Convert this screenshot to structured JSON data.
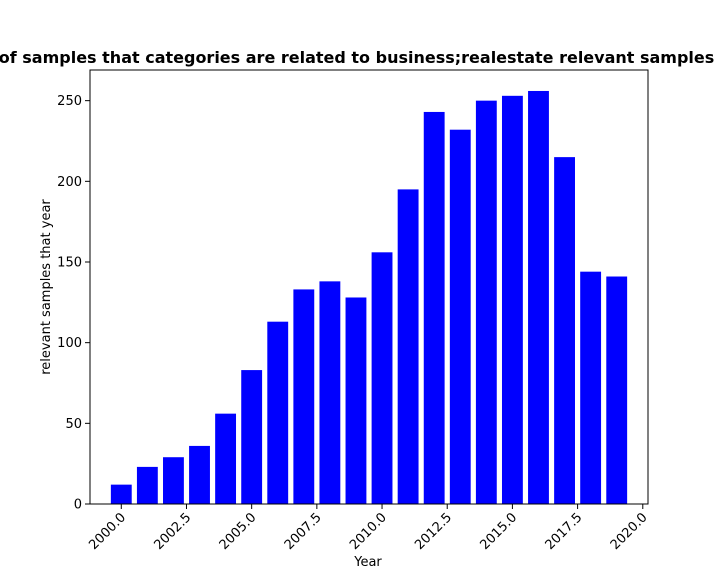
{
  "chart_data": {
    "type": "bar",
    "title": "Trend of the number of samples that categories are related to business;realestate relevant samples that year in privacy policy",
    "xlabel": "Year",
    "ylabel": "relevant samples that year",
    "x": [
      2000,
      2001,
      2002,
      2003,
      2004,
      2005,
      2006,
      2007,
      2008,
      2009,
      2010,
      2011,
      2012,
      2013,
      2014,
      2015,
      2016,
      2017,
      2018,
      2019
    ],
    "values": [
      12,
      23,
      29,
      36,
      56,
      83,
      113,
      133,
      138,
      128,
      156,
      195,
      243,
      232,
      250,
      253,
      256,
      215,
      144,
      141
    ],
    "xlim": [
      1998.8,
      2020.2
    ],
    "ylim": [
      0,
      269
    ],
    "x_ticks": [
      "2000.0",
      "2002.5",
      "2005.0",
      "2007.5",
      "2010.0",
      "2012.5",
      "2015.0",
      "2017.5",
      "2020.0"
    ],
    "y_ticks": [
      "0",
      "50",
      "100",
      "150",
      "200",
      "250"
    ],
    "bar_color": "#0000ff",
    "grid": false,
    "legend": "none"
  }
}
